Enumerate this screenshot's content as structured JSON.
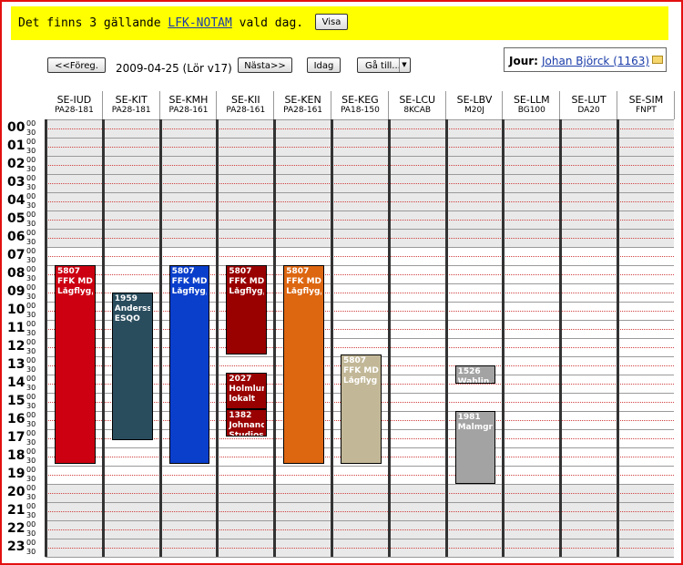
{
  "notam": {
    "prefix": "Det finns 3 gällande ",
    "link": "LFK-NOTAM",
    "suffix": " vald dag.",
    "button": "Visa"
  },
  "nav": {
    "prev": "<<Föreg.",
    "date": "2009-04-25 (Lör v17)",
    "next": "Nästa>>",
    "today": "Idag",
    "goto": "Gå till..."
  },
  "jour": {
    "label": "Jour:",
    "name": "Johan Björck (1163)",
    "icon": "mail-icon"
  },
  "hours": [
    "00",
    "01",
    "02",
    "03",
    "04",
    "05",
    "06",
    "07",
    "08",
    "09",
    "10",
    "11",
    "12",
    "13",
    "14",
    "15",
    "16",
    "17",
    "18",
    "19",
    "20",
    "21",
    "22",
    "23"
  ],
  "minutes": [
    "00",
    "30"
  ],
  "colors": {
    "frame": "#e31010",
    "notam_bg": "#ffff00",
    "night_band": "#e9e9e9",
    "dotted_line": "#d04040",
    "solid_line": "#9a9a9a"
  },
  "aircraft": [
    {
      "reg": "SE-IUD",
      "type": "PA28-181"
    },
    {
      "reg": "SE-KIT",
      "type": "PA28-181"
    },
    {
      "reg": "SE-KMH",
      "type": "PA28-161"
    },
    {
      "reg": "SE-KII",
      "type": "PA28-161"
    },
    {
      "reg": "SE-KEN",
      "type": "PA28-161"
    },
    {
      "reg": "SE-KEG",
      "type": "PA18-150"
    },
    {
      "reg": "SE-LCU",
      "type": "8KCAB"
    },
    {
      "reg": "SE-LBV",
      "type": "M20J"
    },
    {
      "reg": "SE-LLM",
      "type": "BG100"
    },
    {
      "reg": "SE-LUT",
      "type": "DA20"
    },
    {
      "reg": "SE-SIM",
      "type": "FNPT"
    }
  ],
  "bookings": [
    {
      "col": 0,
      "start": 8,
      "end": 18.9,
      "color": "#cc0011",
      "text_color": "#ffffff",
      "lines": [
        "5807",
        "FFK MD, L",
        "Lågflyg, n"
      ]
    },
    {
      "col": 1,
      "start": 9.5,
      "end": 17.6,
      "color": "#2a4d5e",
      "text_color": "#ffffff",
      "lines": [
        "1959",
        "Andersson",
        "ESQO"
      ]
    },
    {
      "col": 2,
      "start": 8,
      "end": 18.9,
      "color": "#0a3fcc",
      "text_color": "#ffffff",
      "lines": [
        "5807",
        "FFK MD, L",
        "Lågflyg, n"
      ]
    },
    {
      "col": 3,
      "start": 8,
      "end": 12.9,
      "color": "#990000",
      "text_color": "#ffffff",
      "lines": [
        "5807",
        "FFK MD, L",
        "Lågflyg, n"
      ]
    },
    {
      "col": 3,
      "start": 13.9,
      "end": 15.9,
      "color": "#990000",
      "text_color": "#ffffff",
      "lines": [
        "2027",
        "Holmlund,",
        "lokalt"
      ]
    },
    {
      "col": 3,
      "start": 15.9,
      "end": 17.4,
      "color": "#990000",
      "text_color": "#ffffff",
      "lines": [
        "1382",
        "Johnander",
        "Studios"
      ]
    },
    {
      "col": 4,
      "start": 8,
      "end": 18.9,
      "color": "#dd6611",
      "text_color": "#ffffff",
      "lines": [
        "5807",
        "FFK MD, L",
        "Lågflyg, n"
      ]
    },
    {
      "col": 5,
      "start": 12.9,
      "end": 18.9,
      "color": "#c2b898",
      "text_color": "#ffffff",
      "lines": [
        "5807",
        "FFK MD, L",
        "Lågflyg"
      ]
    },
    {
      "col": 7,
      "start": 13.5,
      "end": 14.5,
      "color": "#a3a3a3",
      "text_color": "#ffffff",
      "lines": [
        "1526",
        "Wahlin, L"
      ]
    },
    {
      "col": 7,
      "start": 16,
      "end": 20,
      "color": "#a3a3a3",
      "text_color": "#ffffff",
      "lines": [
        "1981",
        "Malmgren,"
      ]
    }
  ]
}
